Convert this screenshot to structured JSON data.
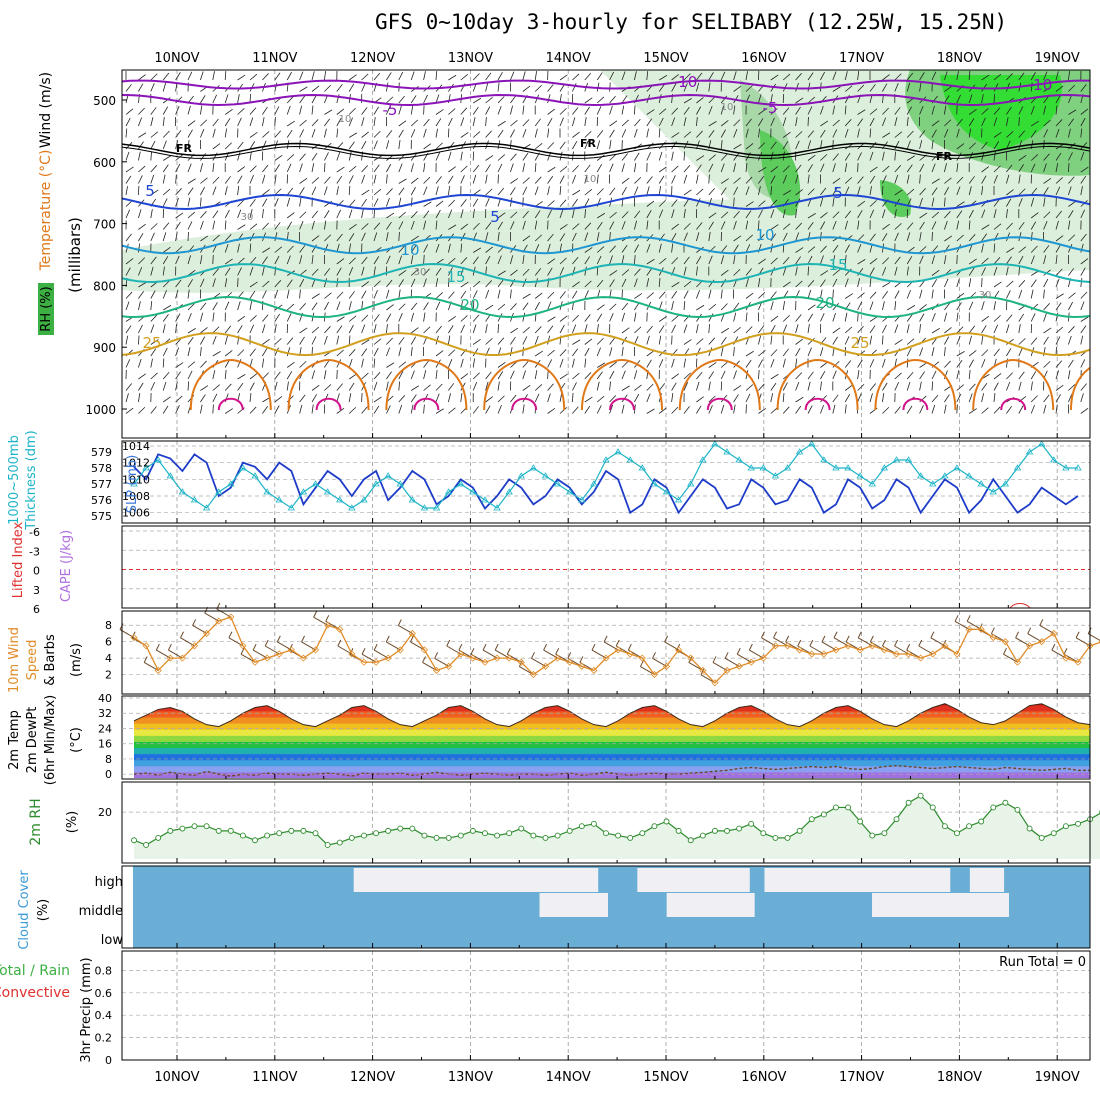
{
  "title": "GFS 0~10day 3-hourly for SELIBABY (12.25W, 15.25N)",
  "run_total": "Run Total = 0",
  "dates": [
    "10NOV",
    "11NOV",
    "12NOV",
    "13NOV",
    "14NOV",
    "15NOV",
    "16NOV",
    "17NOV",
    "18NOV",
    "19NOV"
  ],
  "colors": {
    "rh_green": "#3cb043",
    "rh_light": "#dcefdc",
    "wind_barb": "#000000",
    "temp_purple": "#8b14b8",
    "temp_black": "#000000",
    "temp_blue": "#1e46d2",
    "temp_cyan": "#1e96d2",
    "temp_teal": "#1eb4b4",
    "temp_green": "#1eb482",
    "temp_gold": "#d2a01e",
    "temp_orange": "#e07818",
    "temp_magenta": "#d2148c",
    "slp": "#1e3cc8",
    "thickness": "#1eb4c8",
    "wind10": "#e08c28",
    "rh2m": "#2e8b2e",
    "cloud": "#6aaed6",
    "cloud_gap": "#f0f0f4"
  },
  "panels": {
    "upper_air": {
      "labels": [
        "Wind (m/s)",
        "Temperature (°C)",
        "RH (%)",
        "(millibars)"
      ],
      "y_ticks": [
        "500",
        "600",
        "700",
        "800",
        "900",
        "1000"
      ],
      "contour_labels": {
        "purple": [
          "-10",
          "-5",
          "-5",
          "-10"
        ],
        "freezing": [
          "FR",
          "FR",
          "FR"
        ],
        "blue": [
          "5",
          "5",
          "5"
        ],
        "cyan": [
          "10",
          "10"
        ],
        "teal": [
          "15",
          "15"
        ],
        "green": [
          "20",
          "20"
        ],
        "gold": [
          "25",
          "25"
        ],
        "rh": [
          "10",
          "10",
          "30",
          "30",
          "30",
          "10"
        ]
      }
    },
    "slp": {
      "labels": [
        "SLP (mb)",
        "1000~500mb",
        "Thickness (dm)"
      ],
      "y_ticks_left": [
        "1014",
        "1012",
        "1010",
        "1008",
        "1006"
      ],
      "y_ticks_right": [
        "579",
        "578",
        "577",
        "576",
        "575"
      ]
    },
    "cape": {
      "labels": [
        "CAPE (J/kg)",
        "Lifted Index"
      ],
      "y_ticks": [
        "-6",
        "-3",
        "0",
        "3",
        "6"
      ]
    },
    "wind10": {
      "labels": [
        "10m Wind",
        "Speed",
        "& Barbs",
        "(m/s)"
      ],
      "y_ticks": [
        "8",
        "6",
        "4",
        "2"
      ]
    },
    "temp2m": {
      "labels": [
        "2m Temp",
        "2m DewPt",
        "(6hr Min/Max)",
        "(°C)"
      ],
      "y_ticks": [
        "40",
        "32",
        "24",
        "16",
        "8",
        "0"
      ]
    },
    "rh2m": {
      "labels": [
        "2m RH",
        "(%)"
      ],
      "y_ticks": [
        "20"
      ]
    },
    "cloud": {
      "labels": [
        "Cloud Cover",
        "(%)"
      ],
      "levels": [
        "high",
        "middle",
        "low"
      ]
    },
    "precip": {
      "labels": [
        "Total / Rain",
        "Convective",
        "3hr Precip (mm)"
      ],
      "y_ticks": [
        "0.8",
        "0.6",
        "0.4",
        "0.2",
        "0"
      ]
    }
  },
  "chart_data": [
    {
      "type": "line",
      "title": "Sea level pressure (mb)",
      "x": [
        "09/12",
        "09/15",
        "09/18",
        "09/21",
        "10/00",
        "10/03",
        "10/06",
        "10/09",
        "10/12",
        "10/15",
        "10/18",
        "10/21",
        "11/00",
        "11/03",
        "11/06",
        "11/09",
        "11/12",
        "11/15",
        "11/18",
        "11/21",
        "12/00",
        "12/03",
        "12/06",
        "12/09",
        "12/12",
        "12/15",
        "12/18",
        "12/21",
        "13/00",
        "13/03",
        "13/06",
        "13/09",
        "13/12",
        "13/15",
        "13/18",
        "13/21",
        "14/00",
        "14/03",
        "14/06",
        "14/09",
        "14/12",
        "14/15",
        "14/18",
        "14/21",
        "15/00",
        "15/03",
        "15/06",
        "15/09",
        "15/12",
        "15/15",
        "15/18",
        "15/21",
        "16/00",
        "16/03",
        "16/06",
        "16/09",
        "16/12",
        "16/15",
        "16/18",
        "16/21",
        "17/00",
        "17/03",
        "17/06",
        "17/09",
        "17/12",
        "17/15",
        "17/18",
        "17/21",
        "18/00",
        "18/03",
        "18/06",
        "18/09",
        "18/12",
        "18/15",
        "18/18",
        "18/21",
        "19/00",
        "19/03",
        "19/06"
      ],
      "series": [
        {
          "values": [
            1011.5,
            1010,
            1013,
            1012.5,
            1011,
            1013,
            1012,
            1008,
            1009,
            1012,
            1011.5,
            1010,
            1012,
            1011,
            1007,
            1009,
            1011,
            1010,
            1008,
            1010,
            1011,
            1007.5,
            1009,
            1011,
            1010,
            1007,
            1008,
            1010,
            1009,
            1006.5,
            1008,
            1010,
            1009,
            1007,
            1008,
            1010,
            1009,
            1007,
            1008.5,
            1011,
            1010,
            1006,
            1007,
            1010,
            1009,
            1006,
            1008,
            1010,
            1009,
            1006.5,
            1007,
            1010,
            1009,
            1007,
            1007.5,
            1010,
            1009,
            1006,
            1007,
            1010,
            1009,
            1006.5,
            1007.5,
            1010,
            1009,
            1006,
            1008,
            1010,
            1009,
            1006,
            1007.5,
            1010,
            1008,
            1006,
            1007,
            1009,
            1008,
            1007,
            1008
          ]
        },
        {
          "values": [
            577,
            578,
            578.5,
            577.5,
            576.5,
            576,
            575.5,
            576.5,
            577,
            578,
            577.5,
            576.5,
            576,
            575.5,
            576.5,
            577,
            576.5,
            576,
            575.5,
            576,
            577,
            577.5,
            577,
            576,
            575.5,
            575.5,
            576.5,
            577,
            576.5,
            576,
            575.5,
            576.5,
            577.5,
            578,
            577.5,
            577,
            576.5,
            576,
            577,
            578.5,
            579,
            578.5,
            578,
            577,
            576.5,
            576,
            577,
            578.5,
            579.5,
            579,
            578.5,
            578,
            578,
            577.5,
            578,
            579,
            579.5,
            578.5,
            578,
            578,
            577.5,
            577,
            578,
            578.5,
            578.5,
            577.5,
            577,
            577.5,
            578,
            577.5,
            577,
            576.5,
            577,
            578,
            579,
            579.5,
            578.5,
            578,
            578
          ]
        }
      ],
      "ylim": [
        1005,
        1014
      ]
    },
    {
      "type": "line",
      "title": "10m Wind Speed (m/s)",
      "series": [
        {
          "values": [
            6.5,
            5.5,
            2.5,
            4,
            4,
            5.5,
            7,
            8.5,
            9,
            5.5,
            3.5,
            4,
            4.5,
            5,
            4,
            5,
            8,
            7.5,
            4.5,
            3.5,
            3.5,
            4,
            5,
            7,
            5,
            2.5,
            3,
            4.5,
            4,
            3.5,
            4,
            4,
            3.5,
            2,
            3,
            4,
            3.5,
            3,
            2.5,
            4,
            5,
            4.5,
            4,
            2,
            3,
            5,
            4,
            2.5,
            1,
            2.5,
            3,
            3.5,
            4,
            5.5,
            5.5,
            5,
            4.5,
            4.5,
            5,
            5.5,
            5,
            5.5,
            5,
            4.5,
            4.5,
            4,
            4.5,
            5.5,
            4.5,
            7.5,
            7.5,
            6.5,
            6,
            3.5,
            5.5,
            6,
            7,
            4,
            3.5,
            5.5,
            6,
            7
          ]
        }
      ],
      "ylim": [
        0,
        9
      ]
    },
    {
      "type": "area",
      "title": "2m RH (%)",
      "series": [
        {
          "values": [
            8,
            6,
            9,
            12,
            13,
            14,
            14,
            12,
            12,
            10,
            8,
            10,
            11,
            12,
            12,
            11,
            6,
            7,
            9,
            10,
            11,
            12,
            13,
            13,
            10,
            9,
            9,
            10,
            12,
            11,
            10,
            11,
            13,
            10,
            9,
            10,
            12,
            14,
            15,
            11,
            10,
            9,
            11,
            14,
            16,
            12,
            8,
            10,
            12,
            12,
            13,
            15,
            11,
            9,
            9,
            12,
            17,
            19,
            22,
            22,
            16,
            10,
            11,
            17,
            24,
            27,
            22,
            14,
            11,
            14,
            16,
            22,
            24,
            21,
            13,
            9,
            11,
            14,
            15,
            17,
            20,
            24
          ]
        }
      ],
      "ylim": [
        0,
        32
      ]
    },
    {
      "type": "area",
      "title": "2m Temp (°C)",
      "series": [
        {
          "name": "2m Temp",
          "values": [
            28,
            31,
            34,
            35,
            33,
            29,
            26,
            25,
            28,
            32,
            35,
            36,
            33,
            29,
            26,
            25,
            28,
            31,
            35,
            36,
            33,
            29,
            26,
            25,
            28,
            31,
            35,
            36,
            33,
            29,
            26,
            25,
            28,
            32,
            35,
            36,
            33,
            29,
            26,
            25,
            28,
            32,
            35,
            36,
            33,
            29,
            26,
            25,
            28,
            32,
            35,
            36,
            33,
            29,
            26,
            25,
            28,
            32,
            35,
            36,
            33,
            29,
            26,
            25,
            28,
            32,
            35,
            37,
            34,
            30,
            27,
            26,
            28,
            32,
            36,
            37,
            34,
            30,
            27,
            26
          ]
        },
        {
          "name": "2m DewPt",
          "values": [
            0,
            0.5,
            -0.5,
            1,
            0,
            -0.5,
            1.5,
            0,
            -1,
            0,
            -0.5,
            0.5,
            0,
            0,
            -0.5,
            0,
            0.5,
            0,
            -1,
            0.5,
            0,
            0,
            0.5,
            -0.5,
            0,
            1,
            0,
            -0.5,
            0,
            0.5,
            0,
            -0.5,
            0,
            0,
            -0.5,
            0,
            0.5,
            -0.5,
            0,
            1,
            0,
            -0.5,
            0,
            0.5,
            0,
            0,
            0.5,
            1,
            1.5,
            2,
            3,
            3.5,
            3,
            2.5,
            3,
            3.5,
            4,
            3.5,
            4,
            3,
            2.5,
            3,
            4,
            4.5,
            4,
            3.5,
            3,
            3.5,
            4,
            3.5,
            3,
            2.5,
            3.5,
            3,
            2.5,
            2,
            2.5,
            3,
            2,
            2
          ]
        }
      ],
      "ylim": [
        -2,
        40
      ]
    },
    {
      "type": "heatmap",
      "title": "Cloud Cover (%)",
      "rows": [
        "high",
        "middle",
        "low"
      ],
      "clear_segments": [
        {
          "level": "high",
          "x": [
            2.0,
            4.5
          ]
        },
        {
          "level": "high",
          "x": [
            4.9,
            6.05
          ]
        },
        {
          "level": "high",
          "x": [
            6.2,
            8.1
          ]
        },
        {
          "level": "high",
          "x": [
            8.3,
            8.65
          ]
        },
        {
          "level": "middle",
          "x": [
            3.9,
            4.6
          ]
        },
        {
          "level": "middle",
          "x": [
            5.2,
            6.1
          ]
        },
        {
          "level": "middle",
          "x": [
            7.3,
            8.7
          ]
        }
      ]
    },
    {
      "type": "bar",
      "title": "3hr Precip (mm)",
      "series": [
        {
          "values": [
            0
          ]
        }
      ],
      "ylim": [
        0,
        1
      ]
    }
  ]
}
